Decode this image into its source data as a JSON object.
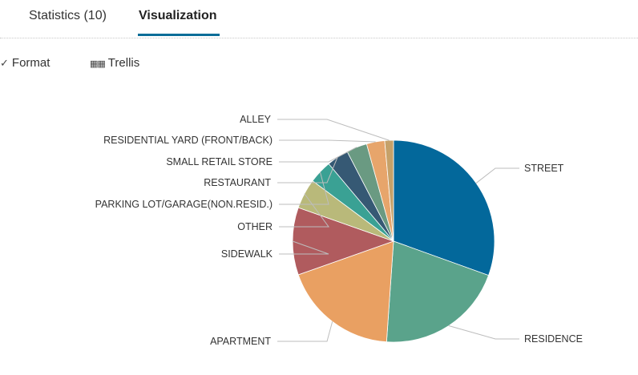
{
  "tabs": [
    {
      "label": "Statistics (10)",
      "active": false
    },
    {
      "label": "Visualization",
      "active": true
    }
  ],
  "toolbar": {
    "format_label": "Format",
    "trellis_label": "Trellis",
    "format_icon": "brush-icon",
    "trellis_icon": "grid-icon"
  },
  "chart_data": {
    "type": "pie",
    "slices": [
      {
        "label": "STREET",
        "value": 30.5,
        "color": "#03689b"
      },
      {
        "label": "RESIDENCE",
        "value": 20.6,
        "color": "#5aa38b"
      },
      {
        "label": "APARTMENT",
        "value": 18.5,
        "color": "#e9a062"
      },
      {
        "label": "SIDEWALK",
        "value": 10.8,
        "color": "#b05b5e"
      },
      {
        "label": "OTHER",
        "value": 4.8,
        "color": "#b9b97a"
      },
      {
        "label": "PARKING LOT/GARAGE(NON.RESID.)",
        "value": 3.7,
        "color": "#3aa194"
      },
      {
        "label": "RESTAURANT",
        "value": 3.5,
        "color": "#365974"
      },
      {
        "label": "SMALL RETAIL STORE",
        "value": 3.3,
        "color": "#6a9a82"
      },
      {
        "label": "RESIDENTIAL YARD (FRONT/BACK)",
        "value": 2.9,
        "color": "#e7a56b"
      },
      {
        "label": "ALLEY",
        "value": 1.4,
        "color": "#c6a169"
      }
    ],
    "legend": "none"
  }
}
